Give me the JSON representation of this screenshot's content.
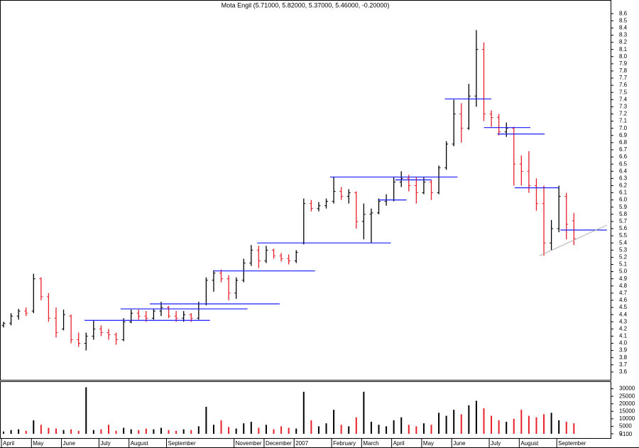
{
  "chart_data": {
    "type": "ohlc",
    "title": "Mota Engil (5.71000, 5.82000, 5.37000, 5.46000, -0.20000)",
    "categories": [
      "April",
      null,
      null,
      null,
      "May",
      null,
      null,
      null,
      "June",
      null,
      null,
      null,
      null,
      "July",
      null,
      null,
      null,
      "August",
      null,
      null,
      null,
      null,
      "September",
      null,
      null,
      null,
      null,
      null,
      null,
      null,
      null,
      "November",
      null,
      null,
      null,
      "December",
      null,
      null,
      null,
      "2007",
      null,
      null,
      null,
      null,
      "February",
      null,
      null,
      null,
      "March",
      null,
      null,
      null,
      "April",
      null,
      null,
      null,
      "May",
      null,
      null,
      null,
      "June",
      null,
      null,
      null,
      null,
      "July",
      null,
      null,
      null,
      "August",
      null,
      null,
      null,
      null,
      "September",
      null,
      null
    ],
    "ohlc": [
      [
        4.25,
        4.3,
        4.22,
        4.28
      ],
      [
        4.28,
        4.42,
        4.25,
        4.38
      ],
      [
        4.38,
        4.48,
        4.33,
        4.45
      ],
      [
        4.45,
        4.5,
        4.38,
        4.42
      ],
      [
        4.45,
        4.97,
        4.42,
        4.9
      ],
      [
        4.9,
        4.92,
        4.6,
        4.65
      ],
      [
        4.65,
        4.7,
        4.3,
        4.35
      ],
      [
        4.35,
        4.5,
        4.08,
        4.15
      ],
      [
        4.2,
        4.47,
        4.18,
        4.4
      ],
      [
        4.38,
        4.4,
        4.0,
        4.05
      ],
      [
        4.05,
        4.15,
        3.95,
        4.0
      ],
      [
        4.0,
        4.15,
        3.9,
        4.1
      ],
      [
        4.1,
        4.32,
        4.05,
        4.2
      ],
      [
        4.2,
        4.25,
        4.1,
        4.15
      ],
      [
        4.15,
        4.2,
        4.05,
        4.12
      ],
      [
        4.12,
        4.15,
        3.98,
        4.05
      ],
      [
        4.05,
        4.35,
        4.03,
        4.3
      ],
      [
        4.3,
        4.47,
        4.28,
        4.42
      ],
      [
        4.42,
        4.47,
        4.33,
        4.38
      ],
      [
        4.38,
        4.45,
        4.3,
        4.35
      ],
      [
        4.35,
        4.48,
        4.33,
        4.45
      ],
      [
        4.45,
        4.58,
        4.38,
        4.5
      ],
      [
        4.5,
        4.52,
        4.35,
        4.38
      ],
      [
        4.38,
        4.45,
        4.3,
        4.35
      ],
      [
        4.35,
        4.45,
        4.3,
        4.4
      ],
      [
        4.4,
        4.42,
        4.3,
        4.35
      ],
      [
        4.35,
        4.58,
        4.33,
        4.55
      ],
      [
        4.55,
        4.92,
        4.53,
        4.88
      ],
      [
        4.88,
        5.02,
        4.72,
        4.98
      ],
      [
        4.98,
        5.03,
        4.85,
        4.9
      ],
      [
        4.9,
        4.95,
        4.6,
        4.7
      ],
      [
        4.7,
        4.92,
        4.62,
        4.88
      ],
      [
        4.88,
        5.18,
        4.85,
        5.12
      ],
      [
        5.12,
        5.37,
        5.08,
        5.3
      ],
      [
        5.3,
        5.36,
        5.05,
        5.15
      ],
      [
        5.15,
        5.36,
        5.12,
        5.3
      ],
      [
        5.3,
        5.32,
        5.18,
        5.22
      ],
      [
        5.22,
        5.26,
        5.14,
        5.18
      ],
      [
        5.18,
        5.24,
        5.1,
        5.15
      ],
      [
        5.15,
        5.3,
        5.12,
        5.27
      ],
      [
        5.4,
        6.02,
        5.38,
        5.95
      ],
      [
        5.95,
        6.0,
        5.84,
        5.88
      ],
      [
        5.88,
        5.97,
        5.84,
        5.92
      ],
      [
        5.92,
        6.02,
        5.88,
        5.98
      ],
      [
        5.98,
        6.32,
        5.95,
        6.12
      ],
      [
        6.12,
        6.18,
        6.0,
        6.05
      ],
      [
        6.05,
        6.15,
        5.95,
        6.1
      ],
      [
        6.1,
        6.12,
        5.6,
        5.7
      ],
      [
        5.7,
        5.95,
        5.45,
        5.8
      ],
      [
        5.8,
        5.88,
        5.4,
        5.82
      ],
      [
        5.82,
        6.02,
        5.8,
        5.98
      ],
      [
        5.98,
        6.08,
        5.92,
        6.0
      ],
      [
        6.0,
        6.32,
        5.98,
        6.25
      ],
      [
        6.25,
        6.4,
        6.18,
        6.3
      ],
      [
        6.3,
        6.35,
        6.12,
        6.2
      ],
      [
        6.2,
        6.32,
        5.95,
        6.1
      ],
      [
        6.1,
        6.32,
        6.08,
        6.25
      ],
      [
        6.25,
        6.28,
        6.0,
        6.1
      ],
      [
        6.1,
        6.48,
        6.08,
        6.45
      ],
      [
        6.45,
        6.82,
        6.42,
        6.78
      ],
      [
        6.78,
        7.4,
        6.75,
        7.2
      ],
      [
        7.2,
        7.35,
        6.8,
        7.0
      ],
      [
        7.0,
        7.62,
        6.98,
        7.45
      ],
      [
        7.45,
        8.37,
        7.3,
        8.1
      ],
      [
        8.1,
        8.2,
        7.1,
        7.2
      ],
      [
        7.2,
        7.25,
        7.02,
        7.15
      ],
      [
        7.15,
        7.2,
        6.9,
        6.95
      ],
      [
        6.95,
        7.08,
        6.88,
        7.0
      ],
      [
        7.0,
        7.02,
        6.2,
        6.5
      ],
      [
        6.5,
        6.62,
        6.2,
        6.4
      ],
      [
        6.4,
        6.68,
        6.1,
        6.2
      ],
      [
        6.2,
        6.3,
        5.85,
        5.95
      ],
      [
        5.95,
        6.2,
        5.22,
        5.4
      ],
      [
        5.4,
        5.72,
        5.3,
        5.6
      ],
      [
        5.6,
        6.2,
        5.55,
        6.05
      ],
      [
        6.05,
        6.1,
        5.45,
        5.66
      ],
      [
        5.71,
        5.82,
        5.37,
        5.46
      ]
    ],
    "volume": [
      1500,
      2500,
      3000,
      2000,
      9000,
      6000,
      4000,
      3500,
      2500,
      3000,
      2000,
      31000,
      2500,
      3000,
      6000,
      2000,
      4000,
      3000,
      2500,
      3500,
      3000,
      4000,
      2500,
      2000,
      3000,
      2500,
      5000,
      18000,
      6000,
      9000,
      4500,
      3500,
      7000,
      8000,
      4000,
      6000,
      3000,
      5000,
      4000,
      3500,
      28000,
      9000,
      5000,
      7000,
      16000,
      6000,
      5000,
      11000,
      28000,
      8000,
      6000,
      5000,
      9000,
      11000,
      6000,
      5000,
      7000,
      6000,
      14000,
      12000,
      16000,
      13000,
      19000,
      22000,
      17000,
      12000,
      9000,
      8000,
      10000,
      16000,
      12000,
      11000,
      13000,
      14000,
      9000,
      8000,
      7000
    ],
    "up_color": "#000000",
    "down_color": "#e8202a",
    "level_color": "#1a1aff",
    "trend_color": "#b0b0b0",
    "ylim": [
      3.49,
      8.79
    ],
    "yticks": [
      3.6,
      3.7,
      3.8,
      3.9,
      {
        "value": 4.0,
        "label": "4.0"
      },
      4.1,
      4.2,
      4.3,
      4.4,
      4.5,
      4.6,
      4.7,
      4.8,
      4.9,
      {
        "value": 5.0,
        "label": "5.0"
      },
      5.1,
      5.2,
      5.3,
      5.4,
      5.5,
      5.6,
      5.7,
      5.8,
      5.9,
      {
        "value": 6.0,
        "label": "6.0"
      },
      6.1,
      6.2,
      6.3,
      6.4,
      6.5,
      6.6,
      6.7,
      6.8,
      6.9,
      {
        "value": 7.0,
        "label": "7.0"
      },
      7.1,
      7.2,
      7.3,
      7.4,
      7.5,
      7.6,
      7.7,
      7.8,
      7.9,
      {
        "value": 8.0,
        "label": "8.0"
      },
      8.1,
      8.2,
      8.3,
      8.4,
      8.5,
      8.6
    ],
    "y2lim": [
      0,
      35000
    ],
    "y2ticks": [
      0,
      5000,
      10000,
      15000,
      20000,
      25000,
      30000
    ],
    "volume_unit": "x100",
    "levels": [
      {
        "value": 4.32,
        "from": 10.8,
        "to": 27.5
      },
      {
        "value": 4.48,
        "from": 15.6,
        "to": 32.5
      },
      {
        "value": 4.55,
        "from": 19.5,
        "to": 36.8
      },
      {
        "value": 5.01,
        "from": 28,
        "to": 41.5
      },
      {
        "value": 5.4,
        "from": 33.8,
        "to": 51.6
      },
      {
        "value": 6.32,
        "from": 43.5,
        "to": 60.5
      },
      {
        "value": 6.0,
        "from": 49.9,
        "to": 53.7
      },
      {
        "value": 6.28,
        "from": 52.2,
        "to": 57
      },
      {
        "value": 7.41,
        "from": 58.8,
        "to": 65
      },
      {
        "value": 7.01,
        "from": 64,
        "to": 70.2
      },
      {
        "value": 6.92,
        "from": 65.8,
        "to": 72.1
      },
      {
        "value": 6.17,
        "from": 68.1,
        "to": 74
      },
      {
        "value": 5.58,
        "from": 74.2,
        "to": 80.4
      }
    ],
    "trendline": {
      "x": [
        71.4,
        80.4
      ],
      "values": [
        5.22,
        5.65
      ]
    }
  }
}
